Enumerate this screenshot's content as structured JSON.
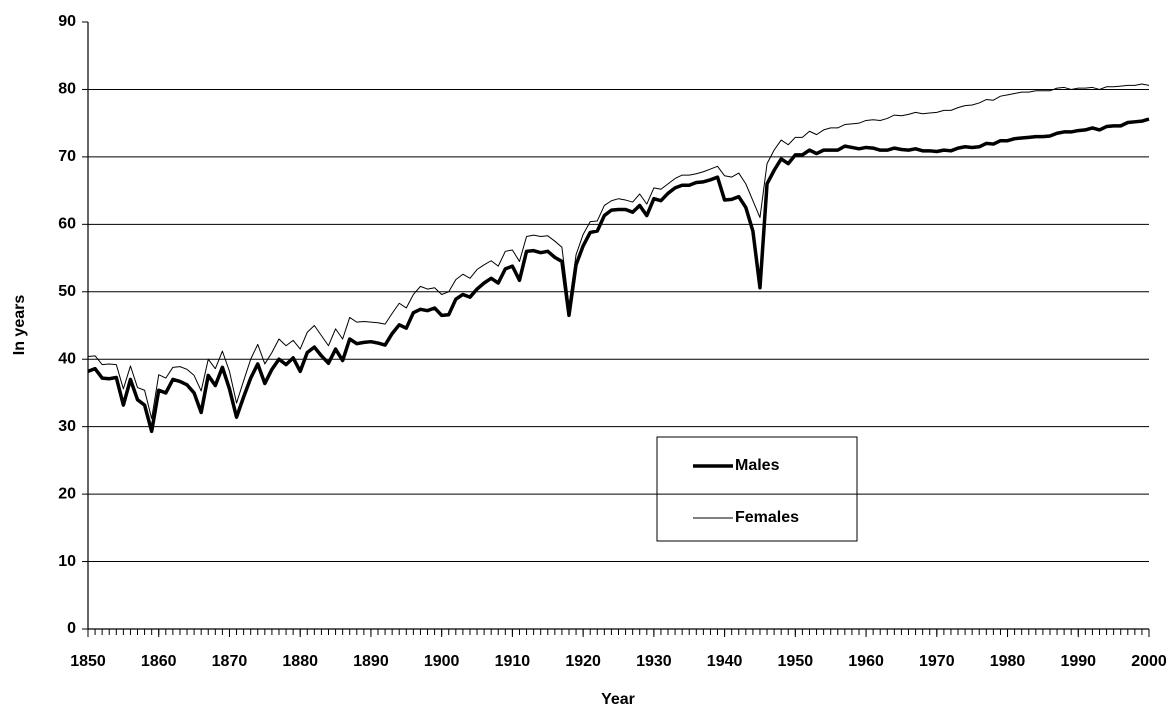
{
  "chart_data": {
    "type": "line",
    "x_label": "Year",
    "y_label": "In years",
    "xlim": [
      1850,
      2000
    ],
    "xticks": [
      1850,
      1860,
      1870,
      1880,
      1890,
      1900,
      1910,
      1920,
      1930,
      1940,
      1950,
      1960,
      1970,
      1980,
      1990,
      2000
    ],
    "ylim": [
      0,
      90
    ],
    "yticks": [
      0,
      10,
      20,
      30,
      40,
      50,
      60,
      70,
      80,
      90
    ],
    "grid": true,
    "x": [
      1850,
      1851,
      1852,
      1853,
      1854,
      1855,
      1856,
      1857,
      1858,
      1859,
      1860,
      1861,
      1862,
      1863,
      1864,
      1865,
      1866,
      1867,
      1868,
      1869,
      1870,
      1871,
      1872,
      1873,
      1874,
      1875,
      1876,
      1877,
      1878,
      1879,
      1880,
      1881,
      1882,
      1883,
      1884,
      1885,
      1886,
      1887,
      1888,
      1889,
      1890,
      1891,
      1892,
      1893,
      1894,
      1895,
      1896,
      1897,
      1898,
      1899,
      1900,
      1901,
      1902,
      1903,
      1904,
      1905,
      1906,
      1907,
      1908,
      1909,
      1910,
      1911,
      1912,
      1913,
      1914,
      1915,
      1916,
      1917,
      1918,
      1919,
      1920,
      1921,
      1922,
      1923,
      1924,
      1925,
      1926,
      1927,
      1928,
      1929,
      1930,
      1931,
      1932,
      1933,
      1934,
      1935,
      1936,
      1937,
      1938,
      1939,
      1940,
      1941,
      1942,
      1943,
      1944,
      1945,
      1946,
      1947,
      1948,
      1949,
      1950,
      1951,
      1952,
      1953,
      1954,
      1955,
      1956,
      1957,
      1958,
      1959,
      1960,
      1961,
      1962,
      1963,
      1964,
      1965,
      1966,
      1967,
      1968,
      1969,
      1970,
      1971,
      1972,
      1973,
      1974,
      1975,
      1976,
      1977,
      1978,
      1979,
      1980,
      1981,
      1982,
      1983,
      1984,
      1985,
      1986,
      1987,
      1988,
      1989,
      1990,
      1991,
      1992,
      1993,
      1994,
      1995,
      1996,
      1997,
      1998,
      1999,
      2000
    ],
    "series": [
      {
        "name": "Males",
        "color": "#000000",
        "values": [
          38.2,
          38.6,
          37.2,
          37.1,
          37.3,
          33.2,
          37.0,
          34.0,
          33.2,
          29.3,
          35.4,
          35.0,
          37.0,
          36.7,
          36.2,
          35.0,
          32.1,
          37.6,
          36.1,
          38.8,
          35.6,
          31.4,
          34.4,
          37.2,
          39.3,
          36.4,
          38.5,
          40.0,
          39.2,
          40.2,
          38.2,
          41.0,
          41.8,
          40.5,
          39.4,
          41.5,
          39.8,
          43.0,
          42.3,
          42.5,
          42.6,
          42.4,
          42.1,
          43.8,
          45.1,
          44.6,
          46.9,
          47.4,
          47.2,
          47.6,
          46.5,
          46.6,
          48.9,
          49.6,
          49.2,
          50.4,
          51.3,
          52.0,
          51.3,
          53.4,
          53.8,
          51.7,
          56.0,
          56.1,
          55.8,
          56.0,
          55.1,
          54.5,
          46.5,
          54.0,
          56.8,
          58.8,
          59.0,
          61.3,
          62.1,
          62.2,
          62.2,
          61.8,
          62.8,
          61.3,
          63.8,
          63.5,
          64.6,
          65.4,
          65.8,
          65.8,
          66.2,
          66.3,
          66.6,
          67.0,
          63.6,
          63.7,
          64.1,
          62.5,
          59.0,
          50.6,
          66.0,
          68.0,
          69.7,
          69.0,
          70.3,
          70.3,
          71.0,
          70.5,
          71.0,
          71.0,
          71.0,
          71.6,
          71.4,
          71.2,
          71.4,
          71.3,
          71.0,
          71.0,
          71.3,
          71.1,
          71.0,
          71.2,
          70.9,
          70.9,
          70.8,
          71.0,
          70.9,
          71.3,
          71.5,
          71.4,
          71.5,
          72.0,
          71.9,
          72.4,
          72.4,
          72.7,
          72.8,
          72.9,
          73.0,
          73.0,
          73.1,
          73.5,
          73.7,
          73.7,
          73.9,
          74.0,
          74.3,
          74.0,
          74.5,
          74.6,
          74.6,
          75.1,
          75.2,
          75.3,
          75.6
        ]
      },
      {
        "name": "Females",
        "color": "#000000",
        "values": [
          40.4,
          40.5,
          39.2,
          39.3,
          39.2,
          35.6,
          39.0,
          35.8,
          35.4,
          31.2,
          37.7,
          37.2,
          38.8,
          38.9,
          38.5,
          37.6,
          35.3,
          40.0,
          38.6,
          41.2,
          38.2,
          33.5,
          36.8,
          40.0,
          42.2,
          39.3,
          41.0,
          43.0,
          42.0,
          42.8,
          41.5,
          44.0,
          45.0,
          43.5,
          42.0,
          44.5,
          43.0,
          46.2,
          45.5,
          45.6,
          45.5,
          45.4,
          45.2,
          46.8,
          48.3,
          47.6,
          49.6,
          50.8,
          50.4,
          50.6,
          49.6,
          50.0,
          51.8,
          52.6,
          52.0,
          53.3,
          54.0,
          54.6,
          53.8,
          56.0,
          56.2,
          54.5,
          58.2,
          58.4,
          58.2,
          58.3,
          57.5,
          56.6,
          48.0,
          55.5,
          58.5,
          60.4,
          60.5,
          62.8,
          63.5,
          63.8,
          63.6,
          63.3,
          64.5,
          63.0,
          65.4,
          65.2,
          66.0,
          66.8,
          67.3,
          67.3,
          67.5,
          67.8,
          68.2,
          68.6,
          67.2,
          67.0,
          67.6,
          66.0,
          63.5,
          61.0,
          69.0,
          71.0,
          72.5,
          71.8,
          72.9,
          72.9,
          73.8,
          73.3,
          74.0,
          74.3,
          74.3,
          74.8,
          74.9,
          75.0,
          75.4,
          75.5,
          75.4,
          75.7,
          76.2,
          76.1,
          76.3,
          76.6,
          76.4,
          76.5,
          76.6,
          76.9,
          76.9,
          77.3,
          77.6,
          77.7,
          78.0,
          78.5,
          78.4,
          79.0,
          79.2,
          79.4,
          79.6,
          79.6,
          79.8,
          79.8,
          79.8,
          80.2,
          80.3,
          80.0,
          80.2,
          80.2,
          80.3,
          80.0,
          80.4,
          80.4,
          80.5,
          80.6,
          80.6,
          80.8,
          80.6
        ]
      }
    ]
  }
}
